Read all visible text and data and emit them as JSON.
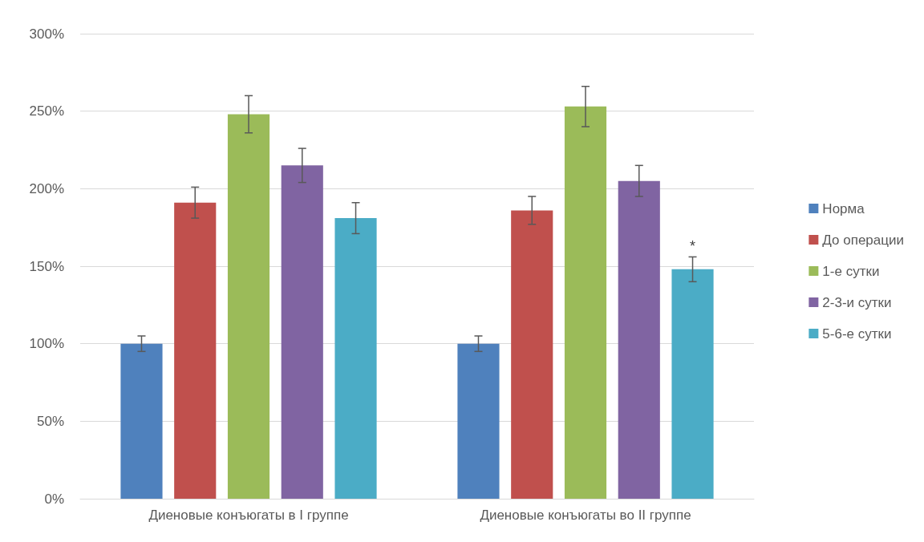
{
  "chart_data": {
    "type": "bar",
    "categories": [
      "Диеновые конъюгаты в I группе",
      "Диеновые конъюгаты во II группе"
    ],
    "series": [
      {
        "name": "Норма",
        "color": "#4f81bd",
        "values": [
          100,
          100
        ],
        "errors": [
          5,
          5
        ]
      },
      {
        "name": "До операции",
        "color": "#c0504d",
        "values": [
          191,
          186
        ],
        "errors": [
          10,
          9
        ]
      },
      {
        "name": "1-е сутки",
        "color": "#9bbb59",
        "values": [
          248,
          253
        ],
        "errors": [
          12,
          13
        ]
      },
      {
        "name": "2-3-и сутки",
        "color": "#8064a2",
        "values": [
          215,
          205
        ],
        "errors": [
          11,
          10
        ]
      },
      {
        "name": "5-6-е сутки",
        "color": "#4bacc6",
        "values": [
          181,
          148
        ],
        "errors": [
          10,
          8
        ],
        "value_labels": [
          null,
          "*"
        ]
      }
    ],
    "ylim": [
      0,
      300
    ],
    "yticks": [
      {
        "value": 0,
        "label": "0%"
      },
      {
        "value": 50,
        "label": "50%"
      },
      {
        "value": 100,
        "label": "100%"
      },
      {
        "value": 150,
        "label": "150%"
      },
      {
        "value": 200,
        "label": "200%"
      },
      {
        "value": 250,
        "label": "250%"
      },
      {
        "value": 300,
        "label": "300%"
      }
    ],
    "grid": "y",
    "legend": "right"
  }
}
